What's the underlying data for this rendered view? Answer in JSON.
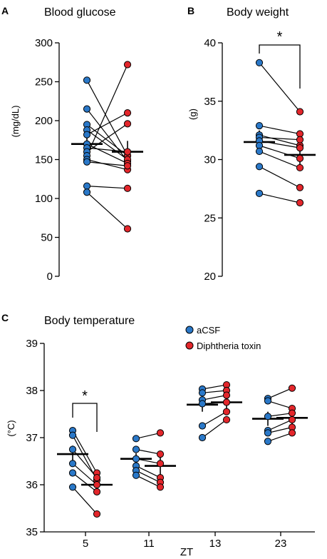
{
  "colors": {
    "aCSF": "#2a78c8",
    "toxin": "#e3262b"
  },
  "legend": {
    "entries": [
      "aCSF",
      "Diphtheria toxin"
    ]
  },
  "chart_data": [
    {
      "panel": "A",
      "type": "scatter",
      "title": "Blood glucose",
      "ylabel": "(mg/dL)",
      "ylim": [
        0,
        300
      ],
      "yticks": [
        0,
        50,
        100,
        150,
        200,
        250,
        300
      ],
      "pairs": [
        [
          252,
          155
        ],
        [
          215,
          148
        ],
        [
          195,
          155
        ],
        [
          188,
          150
        ],
        [
          182,
          210
        ],
        [
          170,
          145
        ],
        [
          165,
          160
        ],
        [
          160,
          196
        ],
        [
          155,
          272
        ],
        [
          150,
          137
        ],
        [
          147,
          142
        ],
        [
          116,
          113
        ],
        [
          108,
          61
        ]
      ],
      "means": [
        170,
        160
      ],
      "sem": [
        11,
        14
      ]
    },
    {
      "panel": "B",
      "type": "scatter",
      "title": "Body weight",
      "ylabel": "(g)",
      "ylim": [
        20,
        40
      ],
      "yticks": [
        20,
        25,
        30,
        35,
        40
      ],
      "significance": "*",
      "pairs": [
        [
          38.3,
          34.1
        ],
        [
          32.9,
          32.2
        ],
        [
          32.1,
          31.2
        ],
        [
          31.9,
          31.7
        ],
        [
          31.6,
          31.0
        ],
        [
          31.2,
          30.1
        ],
        [
          30.7,
          29.3
        ],
        [
          29.4,
          27.6
        ],
        [
          27.1,
          26.3
        ]
      ],
      "means": [
        31.5,
        30.4
      ],
      "sem": [
        1.0,
        0.85
      ]
    },
    {
      "panel": "C",
      "type": "scatter",
      "title": "Body temperature",
      "xlabel": "ZT",
      "ylabel": "(°C)",
      "ylim": [
        35,
        39
      ],
      "yticks": [
        35,
        36,
        37,
        38,
        39
      ],
      "groups": [
        {
          "zt": "5",
          "significance": "*",
          "pairs": [
            [
              37.15,
              36.25
            ],
            [
              37.05,
              36.1
            ],
            [
              36.75,
              36.15
            ],
            [
              36.45,
              36.0
            ],
            [
              36.25,
              35.85
            ],
            [
              35.95,
              35.38
            ]
          ],
          "means": [
            36.65,
            36.0
          ],
          "sem": [
            0.18,
            0.14
          ]
        },
        {
          "zt": "11",
          "pairs": [
            [
              36.98,
              37.1
            ],
            [
              36.75,
              36.65
            ],
            [
              36.55,
              36.45
            ],
            [
              36.4,
              36.15
            ],
            [
              36.3,
              36.05
            ],
            [
              36.2,
              35.95
            ]
          ],
          "means": [
            36.55,
            36.4
          ],
          "sem": [
            0.12,
            0.18
          ]
        },
        {
          "zt": "13",
          "pairs": [
            [
              38.03,
              38.12
            ],
            [
              37.95,
              38.0
            ],
            [
              37.8,
              37.9
            ],
            [
              37.72,
              37.75
            ],
            [
              37.25,
              37.55
            ],
            [
              37.0,
              37.38
            ]
          ],
          "means": [
            37.7,
            37.75
          ],
          "sem": [
            0.15,
            0.13
          ]
        },
        {
          "zt": "23",
          "pairs": [
            [
              37.83,
              38.05
            ],
            [
              37.78,
              37.62
            ],
            [
              37.45,
              37.52
            ],
            [
              37.15,
              37.38
            ],
            [
              37.1,
              37.22
            ],
            [
              36.92,
              37.1
            ]
          ],
          "means": [
            37.4,
            37.42
          ],
          "sem": [
            0.15,
            0.16
          ]
        }
      ]
    }
  ]
}
